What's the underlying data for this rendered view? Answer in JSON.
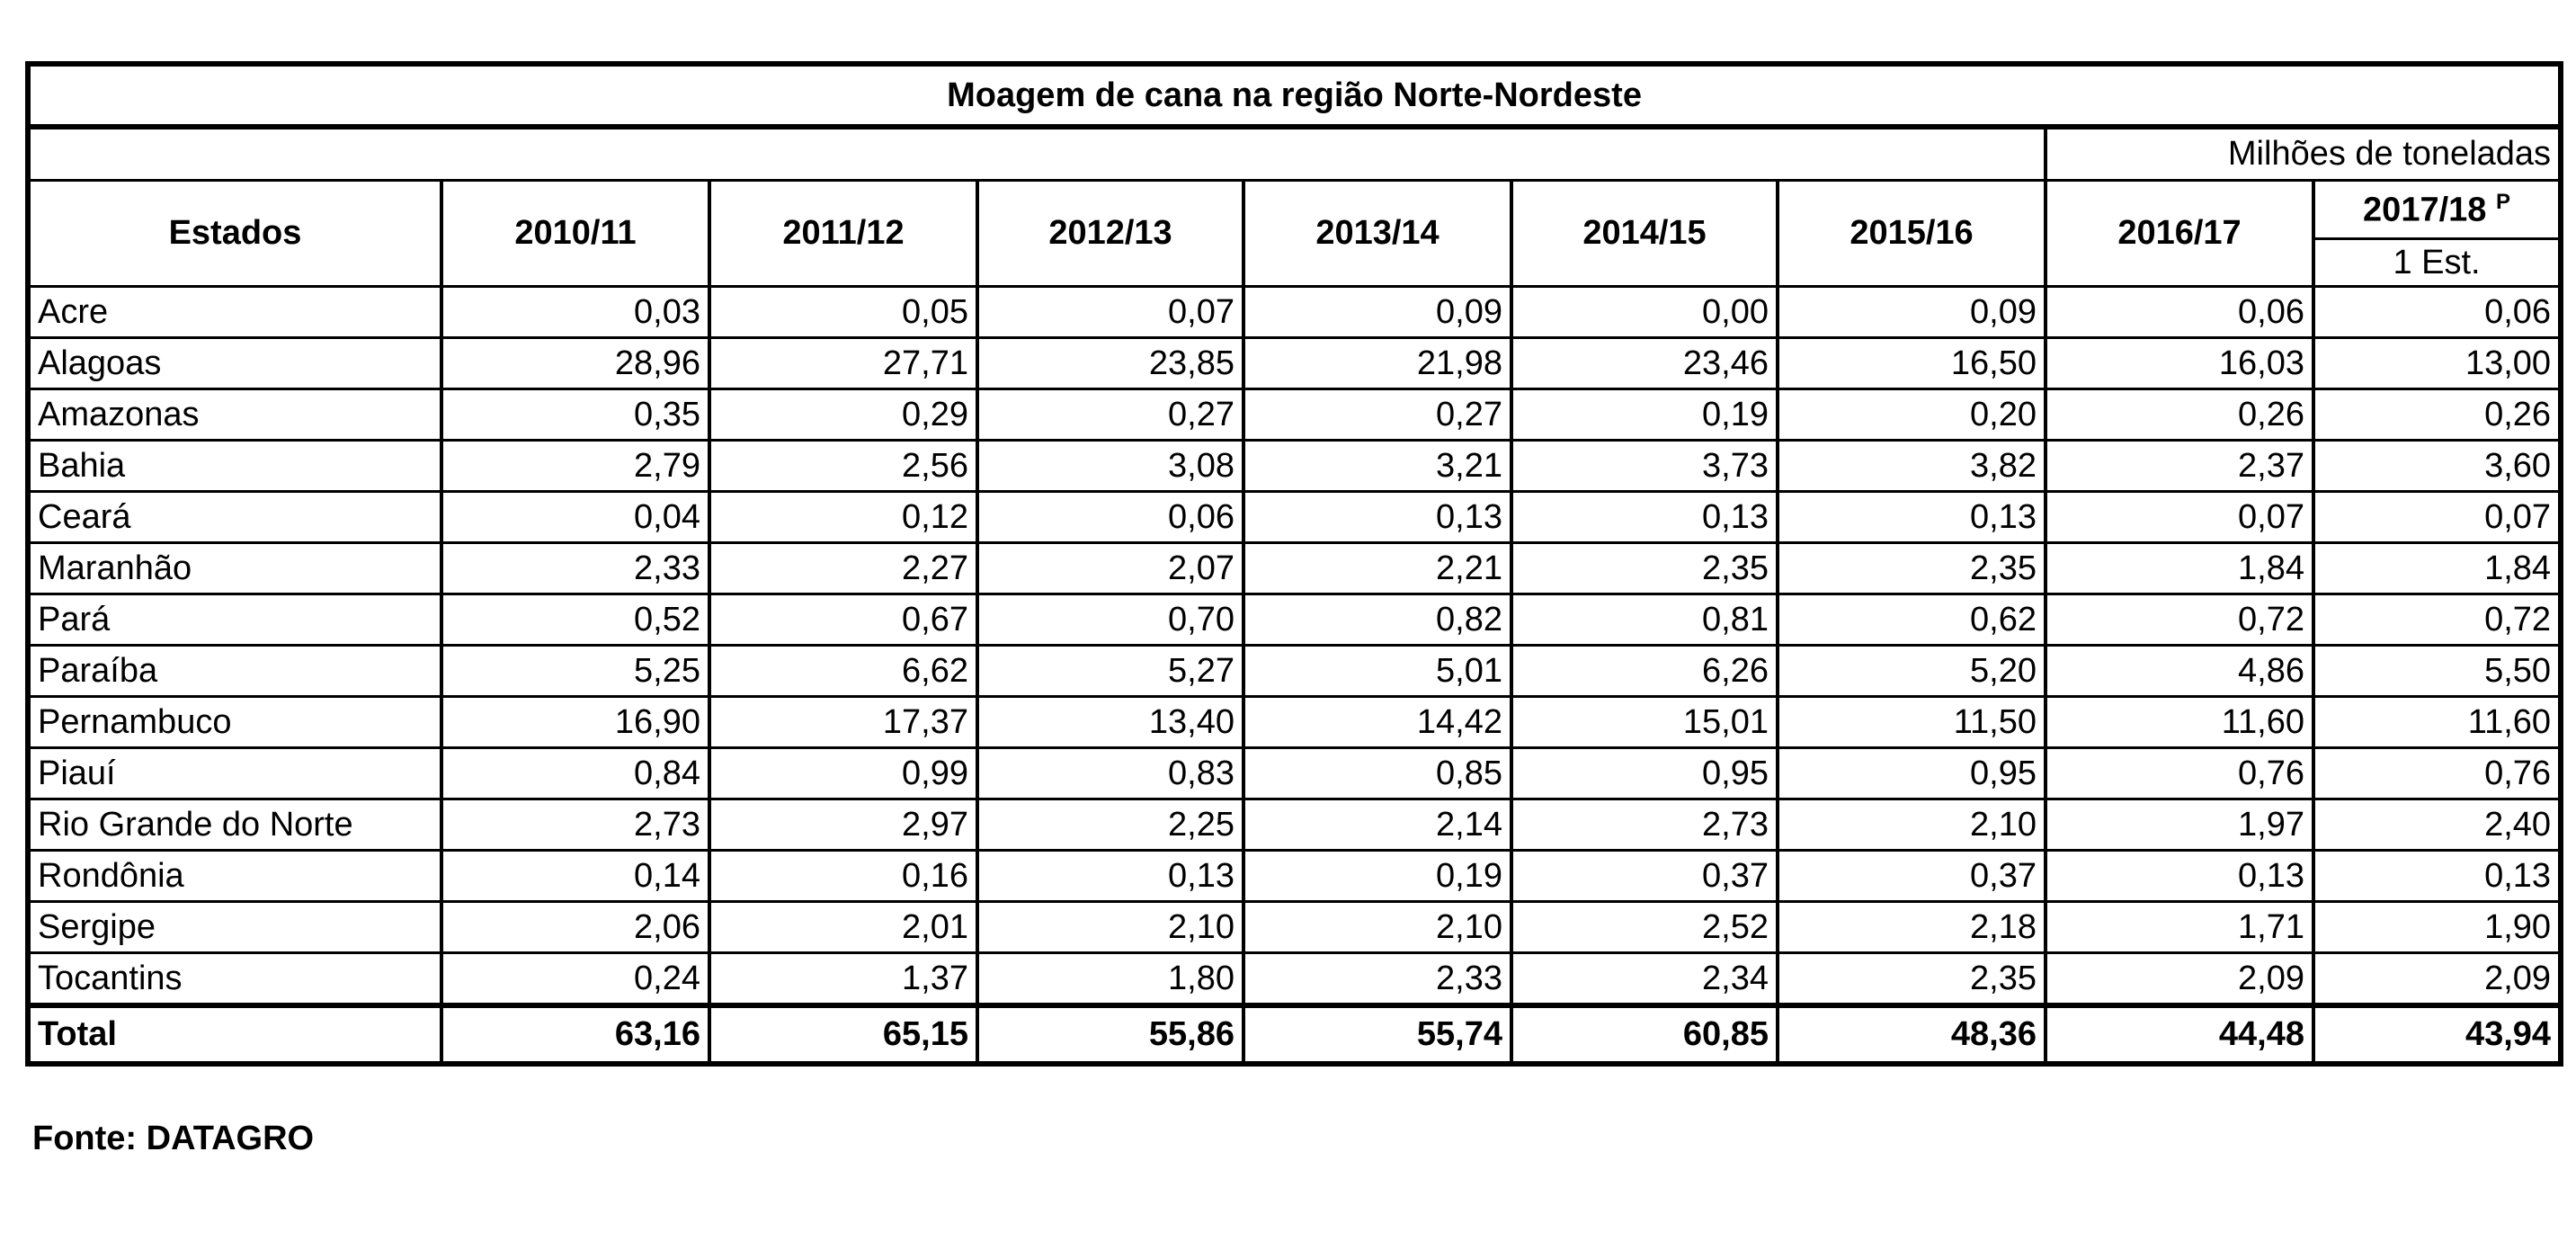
{
  "table": {
    "title": "Moagem de cana na região Norte-Nordeste",
    "unit": "Milhões de toneladas",
    "header": {
      "columns": [
        "Estados",
        "2010/11",
        "2011/12",
        "2012/13",
        "2013/14",
        "2014/15",
        "2015/16",
        "2016/17"
      ],
      "last_column": {
        "label": "2017/18",
        "note": "P",
        "sub": "1 Est."
      }
    },
    "rows": [
      [
        "Acre",
        "0,03",
        "0,05",
        "0,07",
        "0,09",
        "0,00",
        "0,09",
        "0,06",
        "0,06"
      ],
      [
        "Alagoas",
        "28,96",
        "27,71",
        "23,85",
        "21,98",
        "23,46",
        "16,50",
        "16,03",
        "13,00"
      ],
      [
        "Amazonas",
        "0,35",
        "0,29",
        "0,27",
        "0,27",
        "0,19",
        "0,20",
        "0,26",
        "0,26"
      ],
      [
        "Bahia",
        "2,79",
        "2,56",
        "3,08",
        "3,21",
        "3,73",
        "3,82",
        "2,37",
        "3,60"
      ],
      [
        "Ceará",
        "0,04",
        "0,12",
        "0,06",
        "0,13",
        "0,13",
        "0,13",
        "0,07",
        "0,07"
      ],
      [
        "Maranhão",
        "2,33",
        "2,27",
        "2,07",
        "2,21",
        "2,35",
        "2,35",
        "1,84",
        "1,84"
      ],
      [
        "Pará",
        "0,52",
        "0,67",
        "0,70",
        "0,82",
        "0,81",
        "0,62",
        "0,72",
        "0,72"
      ],
      [
        "Paraíba",
        "5,25",
        "6,62",
        "5,27",
        "5,01",
        "6,26",
        "5,20",
        "4,86",
        "5,50"
      ],
      [
        "Pernambuco",
        "16,90",
        "17,37",
        "13,40",
        "14,42",
        "15,01",
        "11,50",
        "11,60",
        "11,60"
      ],
      [
        "Piauí",
        "0,84",
        "0,99",
        "0,83",
        "0,85",
        "0,95",
        "0,95",
        "0,76",
        "0,76"
      ],
      [
        "Rio Grande do Norte",
        "2,73",
        "2,97",
        "2,25",
        "2,14",
        "2,73",
        "2,10",
        "1,97",
        "2,40"
      ],
      [
        "Rondônia",
        "0,14",
        "0,16",
        "0,13",
        "0,19",
        "0,37",
        "0,37",
        "0,13",
        "0,13"
      ],
      [
        "Sergipe",
        "2,06",
        "2,01",
        "2,10",
        "2,10",
        "2,52",
        "2,18",
        "1,71",
        "1,90"
      ],
      [
        "Tocantins",
        "0,24",
        "1,37",
        "1,80",
        "2,33",
        "2,34",
        "2,35",
        "2,09",
        "2,09"
      ]
    ],
    "total": [
      "Total",
      "63,16",
      "65,15",
      "55,86",
      "55,74",
      "60,85",
      "48,36",
      "44,48",
      "43,94"
    ]
  },
  "footer": "Fonte: DATAGRO"
}
